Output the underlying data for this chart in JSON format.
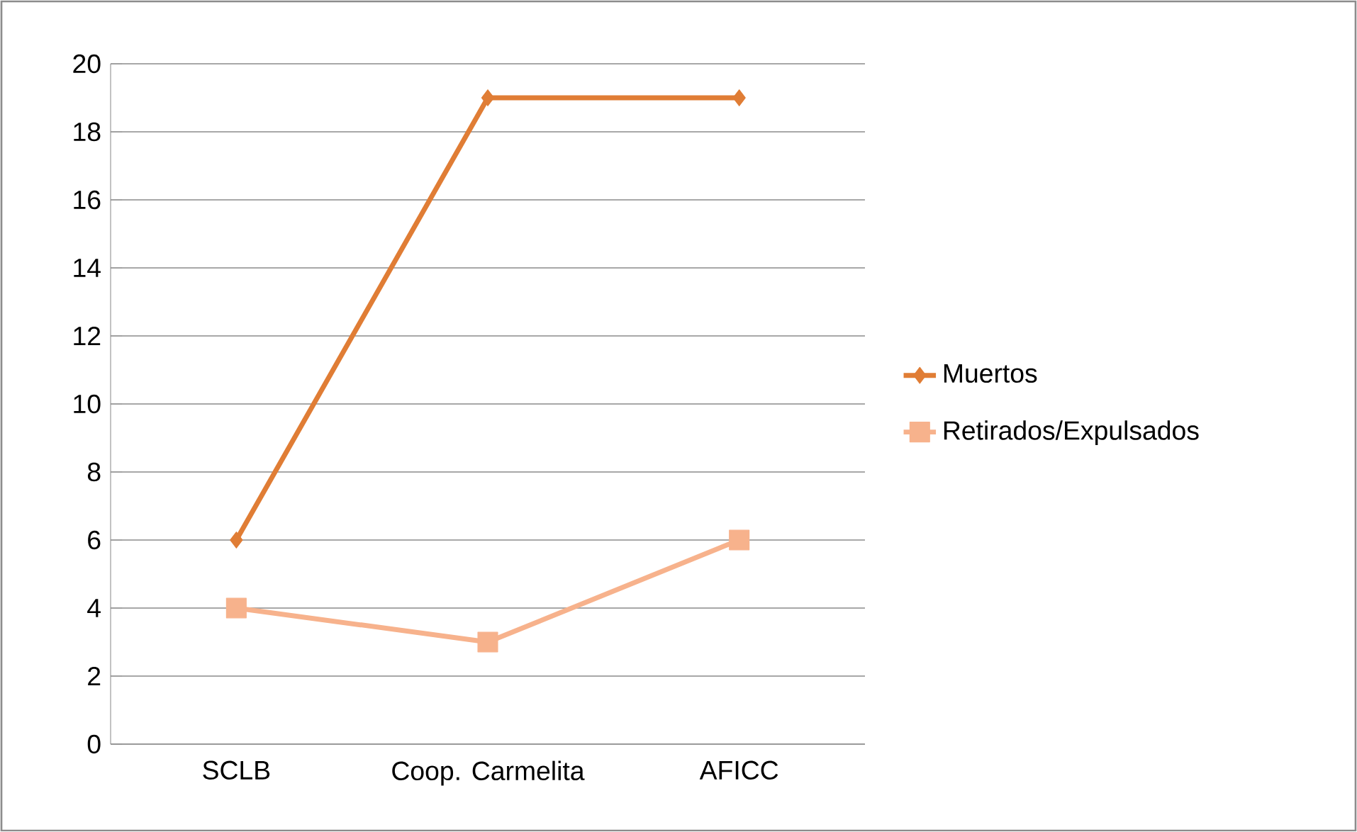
{
  "chart_data": {
    "type": "line",
    "categories": [
      "SCLB",
      "Coop. Carmelita",
      "AFICC"
    ],
    "series": [
      {
        "name": "Muertos",
        "color": "#e07d35",
        "values": [
          6,
          19,
          19
        ],
        "marker": "diamond"
      },
      {
        "name": "Retirados/Expulsados",
        "color": "#f7b28c",
        "values": [
          4,
          3,
          6
        ],
        "marker": "square"
      }
    ],
    "ylim": [
      0,
      20
    ],
    "yticks": [
      0,
      2,
      4,
      6,
      8,
      10,
      12,
      14,
      16,
      18,
      20
    ],
    "grid": "y",
    "legend": "right",
    "line_style": "solid"
  }
}
